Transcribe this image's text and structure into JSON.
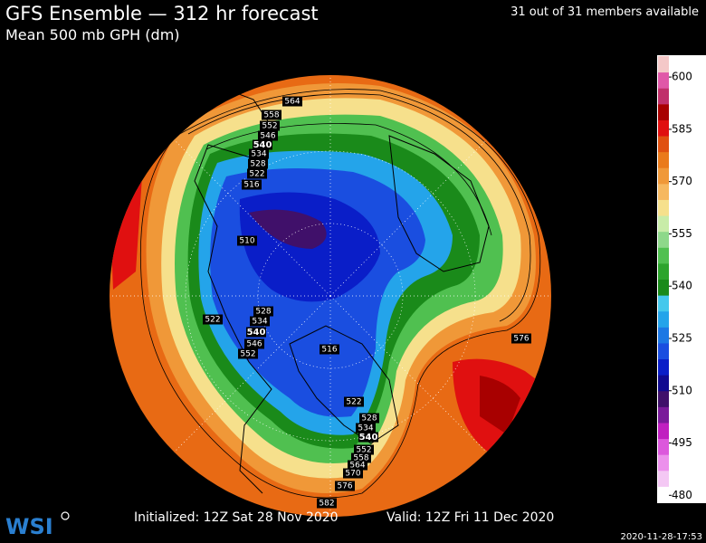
{
  "header": {
    "title": "GFS Ensemble — 312 hr forecast",
    "subtitle": "Mean 500 mb GPH (dm)",
    "members": "31 out of 31 members available"
  },
  "colorbar": {
    "lim": [
      478,
      606
    ],
    "ticks": [
      600,
      585,
      570,
      555,
      540,
      525,
      510,
      495,
      480
    ],
    "colors": [
      "#ffffff",
      "#f4c8f4",
      "#ec90ec",
      "#dc58dc",
      "#c020c0",
      "#7a1a9a",
      "#40106a",
      "#100a90",
      "#0a1ec8",
      "#1a4ee0",
      "#1c78e4",
      "#24a4ea",
      "#44c8ec",
      "#1a8a1a",
      "#2ca42c",
      "#50c050",
      "#8ed88a",
      "#c8eca8",
      "#f6e08c",
      "#f6b860",
      "#f09838",
      "#ea7a1a",
      "#e05010",
      "#e01010",
      "#a80000",
      "#c0306a",
      "#e058a8",
      "#f4c8c8"
    ]
  },
  "map": {
    "contour_labels": [
      "564",
      "558",
      "552",
      "546",
      "540",
      "534",
      "528",
      "522",
      "516",
      "510",
      "522",
      "528",
      "534",
      "540",
      "546",
      "552",
      "516",
      "522",
      "528",
      "534",
      "540",
      "552",
      "558",
      "564",
      "570",
      "576",
      "576",
      "582"
    ]
  },
  "footer": {
    "initialized": "Initialized: 12Z Sat 28 Nov 2020",
    "valid": "Valid: 12Z Fri 11 Dec 2020",
    "logo": "WSI",
    "timestamp": "2020-11-28-17:53"
  }
}
